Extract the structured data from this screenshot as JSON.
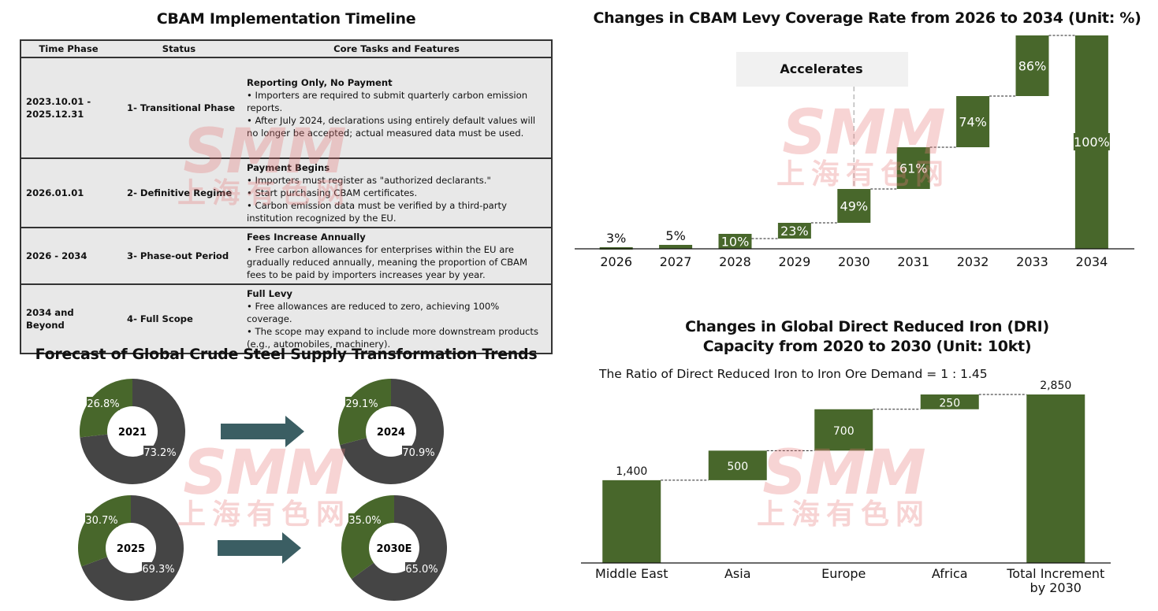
{
  "timeline": {
    "title": "CBAM Implementation Timeline",
    "headers": [
      "Time Phase",
      "Status",
      "Core Tasks and Features"
    ],
    "rows": [
      {
        "phase": "2023.10.01 - 2025.12.31",
        "status": "1- Transitional Phase",
        "core_title": "Reporting Only, No Payment",
        "bullets": [
          "• Importers are required to submit quarterly carbon emission reports.",
          "• After July 2024, declarations using entirely default values will no longer be accepted; actual measured data must be used."
        ]
      },
      {
        "phase": "2026.01.01",
        "status": "2- Definitive Regime",
        "core_title": "Payment Begins",
        "bullets": [
          "• Importers must register as \"authorized declarants.\"",
          "• Start purchasing CBAM certificates.",
          "• Carbon emission data must be verified by a third-party institution recognized by the EU."
        ]
      },
      {
        "phase": "2026 - 2034",
        "status": "3- Phase-out Period",
        "core_title": "Fees Increase Annually",
        "bullets": [
          "• Free carbon allowances for enterprises within the EU are gradually reduced annually, meaning the proportion of CBAM fees to be paid by importers increases year by year."
        ]
      },
      {
        "phase": "2034 and Beyond",
        "status": "4- Full Scope",
        "core_title": "Full Levy",
        "bullets": [
          "• Free allowances are reduced to zero, achieving 100% coverage.",
          "• The scope may expand to include more downstream products (e.g., automobiles, machinery)."
        ]
      }
    ]
  },
  "watermark": {
    "latin": "SMM",
    "chinese": "上海有色网"
  },
  "colors": {
    "green": "#48672b",
    "dark": "#454545",
    "arrow": "#3b5e63",
    "text": "#111111"
  },
  "chart_data": [
    {
      "id": "cbam-levy",
      "type": "bar",
      "subtype": "waterfall",
      "title": "Changes in CBAM Levy Coverage Rate from 2026 to 2034 (Unit: %)",
      "categories": [
        "2026",
        "2027",
        "2028",
        "2029",
        "2030",
        "2031",
        "2032",
        "2033",
        "2034"
      ],
      "values": [
        3,
        5,
        10,
        23,
        49,
        61,
        74,
        86,
        100
      ],
      "labels": [
        "3%",
        "5%",
        "10%",
        "23%",
        "49%",
        "61%",
        "74%",
        "86%",
        "100%"
      ],
      "annotation": "Accelerates",
      "annotation_at": "2030",
      "xlabel": "",
      "ylabel": "",
      "ylim": [
        0,
        100
      ],
      "grid": false,
      "legend": "none"
    },
    {
      "id": "dri-capacity",
      "type": "bar",
      "subtype": "waterfall",
      "title": "Changes in Global Direct Reduced Iron (DRI) Capacity from 2020 to 2030 (Unit: 10kt)",
      "title_lines": [
        "Changes in Global Direct Reduced Iron (DRI)",
        "Capacity from 2020 to 2030 (Unit: 10kt)"
      ],
      "subtitle": "The Ratio of Direct Reduced Iron to Iron Ore Demand = 1 : 1.45",
      "categories": [
        "Middle East",
        "Asia",
        "Europe",
        "Africa",
        "Total Increment by 2030"
      ],
      "category_lines": [
        [
          "Middle East"
        ],
        [
          "Asia"
        ],
        [
          "Europe"
        ],
        [
          "Africa"
        ],
        [
          "Total Increment",
          "by 2030"
        ]
      ],
      "values": [
        1400,
        500,
        700,
        250,
        2850
      ],
      "labels": [
        "1,400",
        "500",
        "700",
        "250",
        "2,850"
      ],
      "is_total": [
        false,
        false,
        false,
        false,
        true
      ],
      "xlabel": "",
      "ylabel": "",
      "ylim": [
        0,
        2850
      ],
      "grid": false,
      "legend": "none"
    },
    {
      "id": "crude-steel-supply",
      "type": "pie",
      "subtype": "donut",
      "title": "Forecast of Global Crude Steel Supply Transformation Trends",
      "charts": [
        {
          "center_label": "2021",
          "values": [
            26.8,
            73.2
          ],
          "labels": [
            "26.8%",
            "73.2%"
          ]
        },
        {
          "center_label": "2024",
          "values": [
            29.1,
            70.9
          ],
          "labels": [
            "29.1%",
            "70.9%"
          ]
        },
        {
          "center_label": "2025",
          "values": [
            30.7,
            69.3
          ],
          "labels": [
            "30.7%",
            "69.3%"
          ]
        },
        {
          "center_label": "2030E",
          "values": [
            35.0,
            65.0
          ],
          "labels": [
            "35.0%",
            "65.0%"
          ]
        }
      ],
      "series_colors": [
        "#48672b",
        "#454545"
      ],
      "legend": "none"
    }
  ]
}
